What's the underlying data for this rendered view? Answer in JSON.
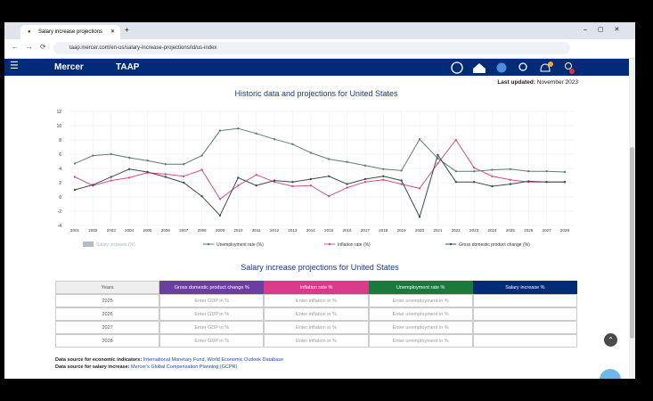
{
  "browser": {
    "tab_title": "Salary increase projections",
    "url": "taap.mercer.com/en-us/salary-increase-projections/id/us-index"
  },
  "nav": {
    "brand": "Mercer",
    "app": "TAAP"
  },
  "last_updated": {
    "label": "Last updated:",
    "value": "November 2023"
  },
  "chart_data": {
    "type": "line",
    "title": "Historic data and projections for United States",
    "categories": [
      "2001",
      "2002",
      "2003",
      "2004",
      "2005",
      "2006",
      "2007",
      "2008",
      "2009",
      "2010",
      "2011",
      "2012",
      "2013",
      "2014",
      "2015",
      "2016",
      "2017",
      "2018",
      "2019",
      "2020",
      "2021",
      "2022",
      "2023",
      "2024",
      "2025",
      "2026",
      "2027",
      "2028"
    ],
    "series": [
      {
        "name": "Salary increase (%)",
        "color": "#b0bec8",
        "hidden": true,
        "values": [
          null,
          null,
          null,
          null,
          null,
          null,
          null,
          null,
          null,
          null,
          null,
          null,
          null,
          null,
          null,
          null,
          null,
          null,
          null,
          null,
          null,
          null,
          null,
          null,
          null,
          null,
          null,
          null
        ]
      },
      {
        "name": "Unemployment rate (%)",
        "color": "#5e7d72",
        "values": [
          4.7,
          5.8,
          6.0,
          5.5,
          5.1,
          4.6,
          4.6,
          5.8,
          9.3,
          9.6,
          8.9,
          8.1,
          7.4,
          6.2,
          5.3,
          4.9,
          4.4,
          3.9,
          3.7,
          8.1,
          5.4,
          3.6,
          3.6,
          3.8,
          3.9,
          3.6,
          3.6,
          3.5
        ]
      },
      {
        "name": "Inflation rate (%)",
        "color": "#d0508a",
        "values": [
          2.8,
          1.6,
          2.3,
          2.7,
          3.4,
          3.2,
          2.9,
          3.8,
          -0.3,
          1.6,
          3.1,
          2.1,
          1.5,
          1.6,
          0.1,
          1.3,
          2.1,
          2.4,
          1.8,
          1.2,
          4.7,
          8.0,
          4.1,
          2.9,
          2.4,
          2.1,
          2.1,
          2.1
        ]
      },
      {
        "name": "Gross domestic product change (%)",
        "color": "#3d4a55",
        "values": [
          1.0,
          1.7,
          2.8,
          3.9,
          3.5,
          2.8,
          2.0,
          0.1,
          -2.6,
          2.7,
          1.6,
          2.3,
          2.1,
          2.5,
          2.9,
          1.8,
          2.5,
          2.9,
          2.3,
          -2.8,
          5.9,
          2.1,
          2.1,
          1.5,
          1.8,
          2.2,
          2.1,
          2.1
        ]
      }
    ],
    "ylim": [
      -4,
      12
    ],
    "yticks": [
      -4,
      -2,
      0,
      2,
      4,
      6,
      8,
      10,
      12
    ],
    "grid": true,
    "legend": "bottom"
  },
  "table": {
    "title": "Salary increase projections for United States",
    "headers": [
      "Years",
      "Gross domestic product change %",
      "Inflation rate %",
      "Unemployment rate %",
      "Salary increase %"
    ],
    "header_colors": [
      "#eeeeee",
      "#6b3fa0",
      "#d93a8a",
      "#1a7a3c",
      "#002c77"
    ],
    "rows": [
      [
        "2025",
        "Enter GDP in %",
        "Enter inflation in %",
        "Enter unemployment in %"
      ],
      [
        "2026",
        "Enter GDP in %",
        "Enter inflation in %",
        "Enter unemployment in %"
      ],
      [
        "2027",
        "Enter GDP in %",
        "Enter inflation in %",
        "Enter unemployment in %"
      ],
      [
        "2028",
        "Enter GDP in %",
        "Enter inflation in %",
        "Enter unemployment in %"
      ]
    ]
  },
  "sources": [
    {
      "label": "Data source for economic indicators:",
      "value": "International Monetary Fund, World Economic Outlook Database"
    },
    {
      "label": "Data source for salary increase:",
      "value": "Mercer's Global Compensation Planning (GCPR)"
    }
  ]
}
